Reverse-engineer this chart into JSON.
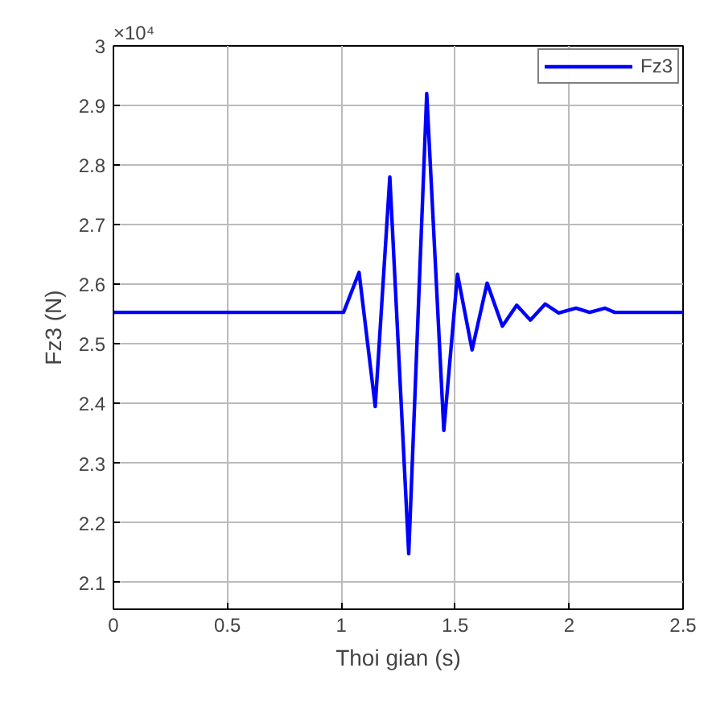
{
  "chart_data": {
    "type": "line",
    "xlabel": "Thoi gian (s)",
    "ylabel": "Fz3 (N)",
    "annotations": [
      "×10⁴"
    ],
    "xlim": [
      0,
      2.5
    ],
    "xticks": [
      0,
      0.5,
      1,
      1.5,
      2,
      2.5
    ],
    "ylim": [
      2.055,
      3.0
    ],
    "yticks": [
      2.1,
      2.2,
      2.3,
      2.4,
      2.5,
      2.6,
      2.7,
      2.8,
      2.9,
      3
    ],
    "grid": true,
    "legend": "top right",
    "series": [
      {
        "name": "Fz3",
        "color": "#0000ff",
        "x": [
          0,
          1.01,
          1.078,
          1.149,
          1.213,
          1.296,
          1.375,
          1.45,
          1.51,
          1.574,
          1.64,
          1.707,
          1.77,
          1.83,
          1.895,
          1.954,
          2.03,
          2.09,
          2.158,
          2.2,
          2.5
        ],
        "values": [
          2.553,
          2.553,
          2.62,
          2.395,
          2.78,
          2.148,
          2.92,
          2.355,
          2.617,
          2.49,
          2.602,
          2.53,
          2.565,
          2.54,
          2.567,
          2.552,
          2.56,
          2.553,
          2.56,
          2.553,
          2.553
        ]
      }
    ]
  }
}
